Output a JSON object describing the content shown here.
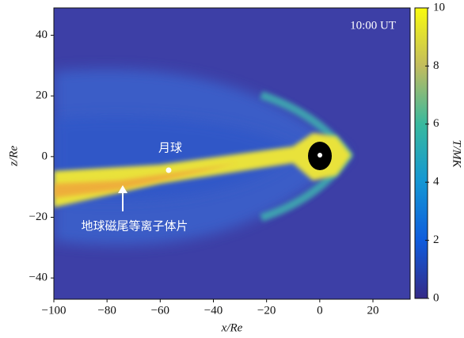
{
  "chart_data": {
    "type": "heatmap",
    "annotation": "10:00 UT",
    "x_label": "x/Re",
    "y_label": "z/Re",
    "colorbar_label": "T/MK",
    "xlim": [
      -100,
      34
    ],
    "ylim": [
      -47,
      49
    ],
    "xticks": [
      {
        "value": -100,
        "label": "−100"
      },
      {
        "value": -80,
        "label": "−80"
      },
      {
        "value": -60,
        "label": "−60"
      },
      {
        "value": -40,
        "label": "−40"
      },
      {
        "value": -20,
        "label": "−20"
      },
      0,
      20
    ],
    "yticks": [
      {
        "value": -40,
        "label": "−40"
      },
      {
        "value": -20,
        "label": "−20"
      },
      0,
      20,
      40
    ],
    "clim": [
      0,
      10
    ],
    "cticks": [
      0,
      2,
      4,
      6,
      8,
      10
    ],
    "colormap": [
      "#352a87",
      "#0f5cdd",
      "#1496d4",
      "#38b99e",
      "#c2bc5e",
      "#f9fb0e"
    ],
    "labels": {
      "moon": "月球",
      "plasma_sheet": "地球磁尾等离子体片"
    }
  }
}
